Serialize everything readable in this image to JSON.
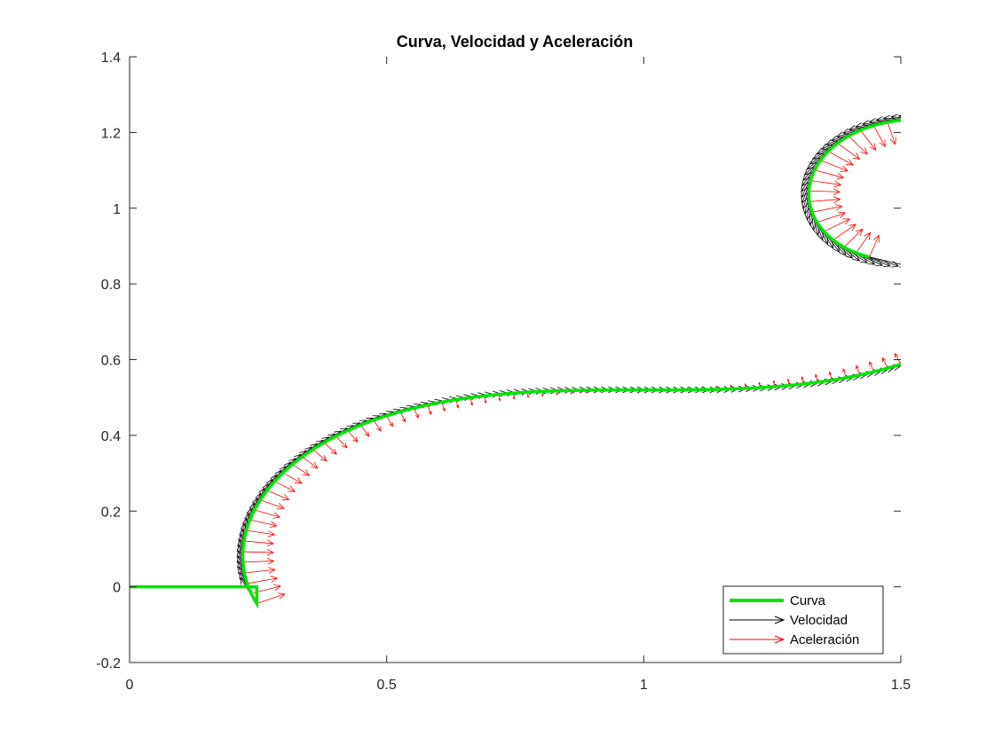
{
  "chart_data": {
    "type": "line",
    "title": "Curva, Velocidad y Aceleración",
    "xlabel": "",
    "ylabel": "",
    "xlim": [
      0,
      1.5
    ],
    "ylim": [
      -0.2,
      1.4
    ],
    "x_ticks": [
      "0",
      "0.5",
      "1",
      "1.5"
    ],
    "y_ticks": [
      "-0.2",
      "0",
      "0.2",
      "0.4",
      "0.6",
      "0.8",
      "1",
      "1.2",
      "1.4"
    ],
    "grid": false,
    "legend_position": "bottom-right",
    "description": "Euler (Cornu) spiral x(t)=∫cos(πs²/2)ds, y(t)=∫sin(πs²/2)ds for t in [-1.13, 1.95]; tangent velocity arrows and inward normal acceleration arrows drawn at sample points along the curve",
    "curve": {
      "t_start": -1.13,
      "t_end": 1.95,
      "x_offset": 1.0,
      "y_offset": 0.52,
      "color": "#00e600"
    },
    "legend": [
      {
        "name": "Curva",
        "color": "#00e600"
      },
      {
        "name": "Velocidad",
        "color": "#000000"
      },
      {
        "name": "Aceleración",
        "color": "#ff0000"
      }
    ],
    "series": [
      {
        "name": "Curva",
        "color": "#00e600"
      },
      {
        "name": "Velocidad",
        "color": "#000000",
        "arrow_samples": 220,
        "arrow_scale": 0.075
      },
      {
        "name": "Aceleración",
        "color": "#ff0000",
        "arrow_samples": 110,
        "arrow_scale": 0.06
      }
    ]
  }
}
